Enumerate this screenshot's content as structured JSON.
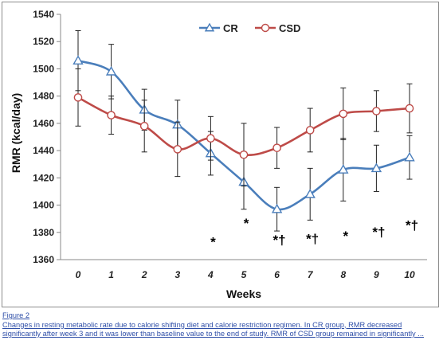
{
  "chart_data": {
    "type": "line",
    "title": "",
    "xlabel": "Weeks",
    "ylabel": "RMR (kcal/day)",
    "x": [
      0,
      1,
      2,
      3,
      4,
      5,
      6,
      7,
      8,
      9,
      10
    ],
    "xticks": [
      "0",
      "1",
      "2",
      "3",
      "4",
      "5",
      "6",
      "7",
      "8",
      "9",
      "10"
    ],
    "ylim": [
      1360,
      1540
    ],
    "yticks": [
      "1360",
      "1380",
      "1400",
      "1420",
      "1440",
      "1460",
      "1480",
      "1500",
      "1520",
      "1540"
    ],
    "grid": false,
    "legend_position": "top-center",
    "series": [
      {
        "name": "CR",
        "color": "#4a7ebb",
        "marker": "triangle",
        "values": [
          1506,
          1498,
          1470,
          1459,
          1438,
          1417,
          1397,
          1408,
          1426,
          1427,
          1435
        ],
        "error": [
          22,
          20,
          15,
          18,
          16,
          20,
          16,
          19,
          23,
          17,
          16
        ]
      },
      {
        "name": "CSD",
        "color": "#be4b48",
        "marker": "circle",
        "values": [
          1479,
          1466,
          1458,
          1441,
          1449,
          1437,
          1442,
          1455,
          1467,
          1469,
          1471
        ],
        "error": [
          21,
          14,
          19,
          20,
          16,
          23,
          15,
          16,
          19,
          15,
          18
        ]
      }
    ],
    "annotations": [
      {
        "x": 4,
        "y": 1369.5,
        "text": "*"
      },
      {
        "x": 5,
        "y": 1383.5,
        "text": "*"
      },
      {
        "x": 6,
        "y": 1371,
        "text": "*†"
      },
      {
        "x": 7,
        "y": 1372,
        "text": "*†"
      },
      {
        "x": 8,
        "y": 1374,
        "text": "*"
      },
      {
        "x": 9,
        "y": 1377,
        "text": "*†"
      },
      {
        "x": 10,
        "y": 1382,
        "text": "*†"
      }
    ]
  },
  "caption": {
    "title": "Figure 2",
    "text": "Changes in resting metabolic rate due to calorie shifting diet and calorie restriction regimen. In CR group, RMR decreased significantly after week 3 and it was lower than baseline value to the end of study. RMR of CSD group remained in significantly ..."
  }
}
